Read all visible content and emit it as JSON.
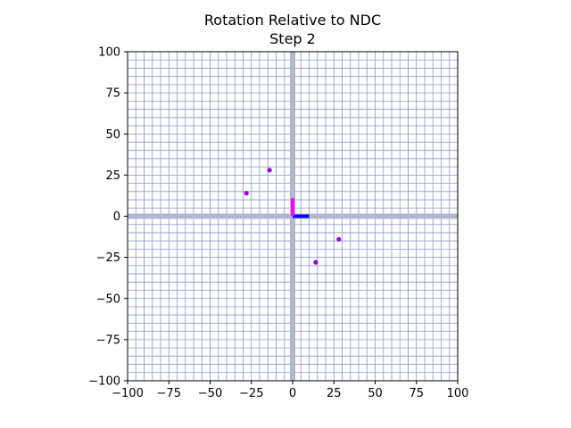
{
  "chart_data": {
    "type": "scatter",
    "title": "Rotation Relative to NDC",
    "subtitle": "Step 2",
    "xlabel": "",
    "ylabel": "",
    "xlim": [
      -100,
      100
    ],
    "ylim": [
      -100,
      100
    ],
    "xticks": [
      -100,
      -75,
      -50,
      -25,
      0,
      25,
      50,
      75,
      100
    ],
    "yticks": [
      -100,
      -75,
      -50,
      -25,
      0,
      25,
      50,
      75,
      100
    ],
    "xtick_labels": [
      "−100",
      "−75",
      "−50",
      "−25",
      "0",
      "25",
      "50",
      "75",
      "100"
    ],
    "ytick_labels": [
      "−100",
      "−75",
      "−50",
      "−25",
      "0",
      "25",
      "50",
      "75",
      "100"
    ],
    "grid": true,
    "grid_step": 5,
    "points": {
      "color": "#9400d3",
      "x": [
        -14,
        -28,
        28,
        14
      ],
      "y": [
        28,
        14,
        -14,
        -28
      ]
    },
    "axis_indicators": [
      {
        "axis": "x",
        "color": "#0000ff",
        "from": [
          0,
          0
        ],
        "to": [
          10,
          0
        ]
      },
      {
        "axis": "y",
        "color": "#ff00ff",
        "from": [
          0,
          0
        ],
        "to": [
          0,
          11
        ]
      }
    ],
    "colors": {
      "grid": "#8e97c0",
      "axis_band": "#b0b8d2",
      "frame": "#000000"
    }
  }
}
